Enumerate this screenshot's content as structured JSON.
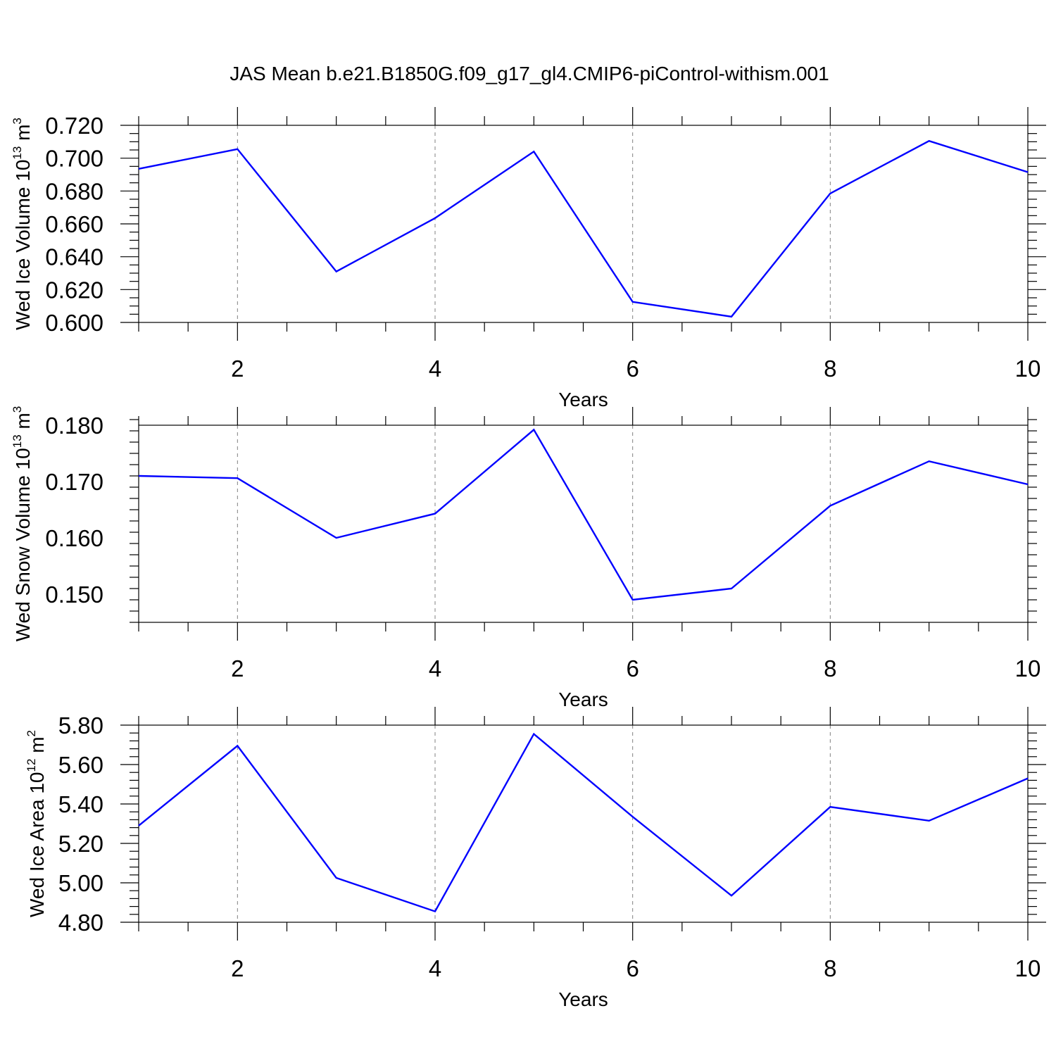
{
  "figure": {
    "title": "JAS Mean b.e21.B1850G.f09_g17_gl4.CMIP6-piControl-withism.001"
  },
  "chart_data": [
    {
      "type": "line",
      "xlabel": "Years",
      "ylabel": {
        "main": "Wed Ice Volume 10",
        "sup": "13",
        "unit": " m",
        "unit_sup": "3"
      },
      "x": [
        1,
        2,
        3,
        4,
        5,
        6,
        7,
        8,
        9,
        10
      ],
      "series": [
        {
          "values": [
            0.6935,
            0.7055,
            0.631,
            0.6635,
            0.704,
            0.6125,
            0.6035,
            0.6785,
            0.7105,
            0.6915
          ],
          "color": "#0000ff"
        }
      ],
      "xlim": [
        1,
        10
      ],
      "ylim": [
        0.6,
        0.72
      ],
      "xticks": [
        2,
        4,
        6,
        8,
        10
      ],
      "xtick_labels": [
        "2",
        "4",
        "6",
        "8",
        "10"
      ],
      "yticks": [
        0.6,
        0.62,
        0.64,
        0.66,
        0.68,
        0.7,
        0.72
      ],
      "ytick_labels": [
        "0.600",
        "0.620",
        "0.640",
        "0.660",
        "0.680",
        "0.700",
        "0.720"
      ],
      "y_minor_step": 0.005,
      "grid": "vertical dashed at major x ticks"
    },
    {
      "type": "line",
      "xlabel": "Years",
      "ylabel": {
        "main": "Wed Snow Volume 10",
        "sup": "13",
        "unit": " m",
        "unit_sup": "3"
      },
      "x": [
        1,
        2,
        3,
        4,
        5,
        6,
        7,
        8,
        9,
        10
      ],
      "series": [
        {
          "values": [
            0.171,
            0.1706,
            0.16,
            0.1643,
            0.1792,
            0.149,
            0.151,
            0.1657,
            0.1736,
            0.1695
          ],
          "color": "#0000ff"
        }
      ],
      "xlim": [
        1,
        10
      ],
      "ylim": [
        0.145,
        0.18
      ],
      "xticks": [
        2,
        4,
        6,
        8,
        10
      ],
      "xtick_labels": [
        "2",
        "4",
        "6",
        "8",
        "10"
      ],
      "yticks": [
        0.15,
        0.16,
        0.17,
        0.18
      ],
      "ytick_labels": [
        "0.150",
        "0.160",
        "0.170",
        "0.180"
      ],
      "y_minor_step": 0.002,
      "grid": "vertical dashed at major x ticks"
    },
    {
      "type": "line",
      "xlabel": "Years",
      "ylabel": {
        "main": "Wed Ice Area 10",
        "sup": "12",
        "unit": " m",
        "unit_sup": "2"
      },
      "x": [
        1,
        2,
        3,
        4,
        5,
        6,
        7,
        8,
        9,
        10
      ],
      "series": [
        {
          "values": [
            5.29,
            5.695,
            5.025,
            4.855,
            5.755,
            5.335,
            4.935,
            5.385,
            5.315,
            5.53
          ],
          "color": "#0000ff"
        }
      ],
      "xlim": [
        1,
        10
      ],
      "ylim": [
        4.8,
        5.8
      ],
      "xticks": [
        2,
        4,
        6,
        8,
        10
      ],
      "xtick_labels": [
        "2",
        "4",
        "6",
        "8",
        "10"
      ],
      "yticks": [
        4.8,
        5.0,
        5.2,
        5.4,
        5.6,
        5.8
      ],
      "ytick_labels": [
        "4.80",
        "5.00",
        "5.20",
        "5.40",
        "5.60",
        "5.80"
      ],
      "y_minor_step": 0.04,
      "grid": "vertical dashed at major x ticks"
    }
  ]
}
